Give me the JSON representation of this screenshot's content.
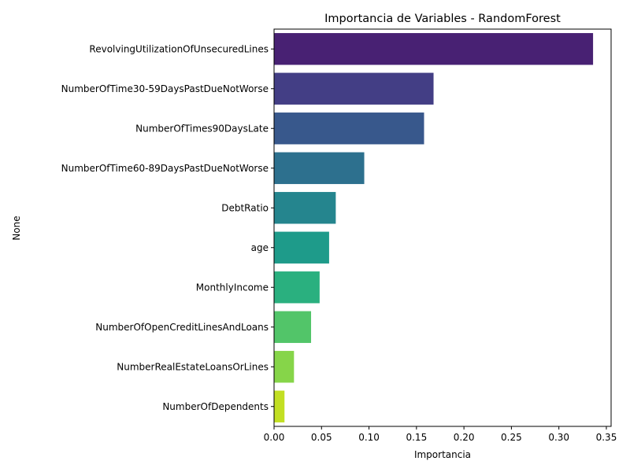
{
  "chart_data": {
    "type": "bar",
    "orientation": "horizontal",
    "title": "Importancia de Variables - RandomForest",
    "xlabel": "Importancia",
    "ylabel": "None",
    "categories": [
      "RevolvingUtilizationOfUnsecuredLines",
      "NumberOfTime30-59DaysPastDueNotWorse",
      "NumberOfTimes90DaysLate",
      "NumberOfTime60-89DaysPastDueNotWorse",
      "DebtRatio",
      "age",
      "MonthlyIncome",
      "NumberOfOpenCreditLinesAndLoans",
      "NumberRealEstateLoansOrLines",
      "NumberOfDependents"
    ],
    "values": [
      0.336,
      0.168,
      0.158,
      0.095,
      0.065,
      0.058,
      0.048,
      0.039,
      0.021,
      0.011
    ],
    "colors": [
      "#482173",
      "#433e85",
      "#38588c",
      "#2d708e",
      "#25858e",
      "#1e9b8a",
      "#2ab07f",
      "#52c569",
      "#86d549",
      "#c2df23"
    ],
    "xlim": [
      0,
      0.355
    ],
    "xticks": [
      0.0,
      0.05,
      0.1,
      0.15,
      0.2,
      0.25,
      0.3,
      0.35
    ],
    "xtick_labels": [
      "0.00",
      "0.05",
      "0.10",
      "0.15",
      "0.20",
      "0.25",
      "0.30",
      "0.35"
    ],
    "grid": false,
    "legend": "none",
    "palette": "viridis"
  }
}
